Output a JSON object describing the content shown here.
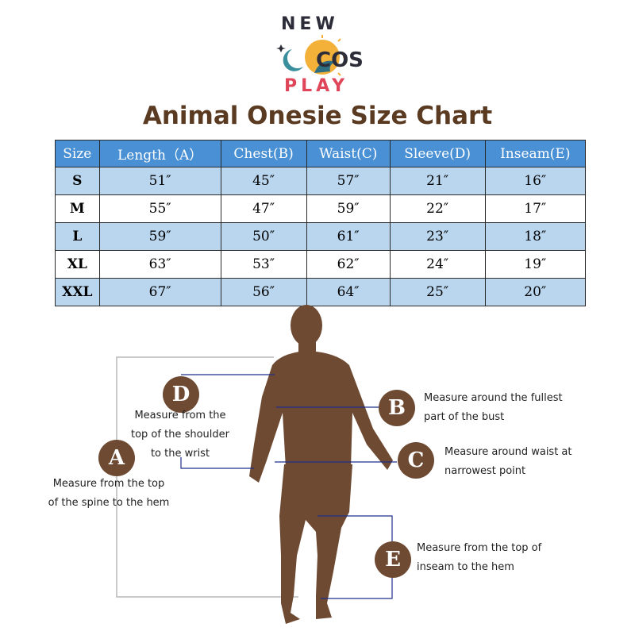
{
  "logo": {
    "top_text": "NEW",
    "middle_text": "COS",
    "bottom_text": "PLAY"
  },
  "title": "Animal Onesie Size Chart",
  "table": {
    "headers": [
      "Size",
      "Length（A）",
      "Chest(B)",
      "Waist(C)",
      "Sleeve(D)",
      "Inseam(E)"
    ],
    "rows": [
      [
        "S",
        "51″",
        "45″",
        "57″",
        "21″",
        "16″"
      ],
      [
        "M",
        "55″",
        "47″",
        "59″",
        "22″",
        "17″"
      ],
      [
        "L",
        "59″",
        "50″",
        "61″",
        "23″",
        "18″"
      ],
      [
        "XL",
        "63″",
        "53″",
        "62″",
        "24″",
        "19″"
      ],
      [
        "XXL",
        "67″",
        "56″",
        "64″",
        "25″",
        "20″"
      ]
    ]
  },
  "diagram": {
    "A": {
      "letter": "A",
      "line1": "Measure from the top",
      "line2": "of the spine to the hem"
    },
    "B": {
      "letter": "B",
      "line1": "Measure around the fullest",
      "line2": "part of the bust"
    },
    "C": {
      "letter": "C",
      "line1": "Measure around waist at",
      "line2": "narrowest point"
    },
    "D": {
      "letter": "D",
      "line1": "Measure from the",
      "line2": "top of the shoulder",
      "line3": "to the wrist"
    },
    "E": {
      "letter": "E",
      "line1": "Measure from the top of",
      "line2": "inseam to the hem"
    }
  },
  "colors": {
    "title": "#5a3b22",
    "header_bg": "#4a90d4",
    "row_alt": "#b9d6ee",
    "figure": "#6e4a33",
    "line": "#1f2f8a"
  }
}
